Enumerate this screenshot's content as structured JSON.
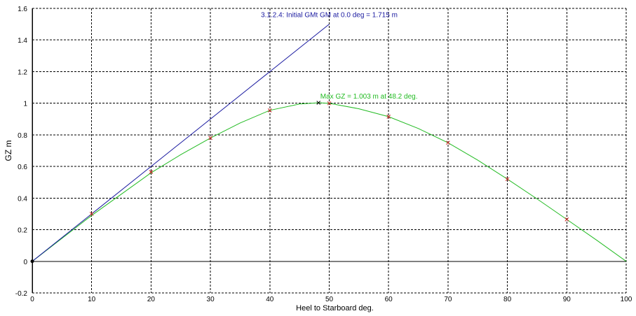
{
  "chart_data": {
    "type": "line",
    "xlabel": "Heel to Starboard  deg.",
    "ylabel": "GZ  m",
    "xlim": [
      0,
      100
    ],
    "ylim": [
      -0.2,
      1.6
    ],
    "xticks": [
      0,
      10,
      20,
      30,
      40,
      50,
      60,
      70,
      80,
      90,
      100
    ],
    "yticks": [
      -0.2,
      0,
      0.2,
      0.4,
      0.6,
      0.8,
      1,
      1.2,
      1.4,
      1.6
    ],
    "grid": true,
    "colors": {
      "gz_curve": "#22bb22",
      "gm_line": "#1a1aa0",
      "markers": "#cc2222",
      "axes": "#000000",
      "grid": "#000000"
    },
    "series": [
      {
        "key": "gz",
        "x": [
          0,
          5,
          10,
          15,
          20,
          25,
          30,
          35,
          40,
          45,
          48.2,
          50,
          55,
          60,
          65,
          70,
          75,
          80,
          85,
          90,
          95,
          100
        ],
        "y": [
          0,
          0.145,
          0.29,
          0.425,
          0.56,
          0.675,
          0.78,
          0.875,
          0.955,
          0.995,
          1.003,
          1.0,
          0.965,
          0.915,
          0.84,
          0.75,
          0.64,
          0.52,
          0.395,
          0.265,
          0.135,
          0.0
        ]
      },
      {
        "key": "gm",
        "x": [
          0,
          50
        ],
        "y": [
          0,
          1.5
        ]
      }
    ],
    "markers": {
      "x": [
        10,
        20,
        30,
        40,
        50,
        60,
        70,
        80,
        90
      ],
      "y": [
        0.3,
        0.565,
        0.78,
        0.955,
        1.0,
        0.915,
        0.75,
        0.52,
        0.265
      ]
    },
    "max_point": {
      "x": 48.2,
      "y": 1.003
    },
    "annotations": [
      {
        "text": "3.1.2.4: Initial GMt GM at 0.0 deg = 1.715 m",
        "x": 38.5,
        "y": 1.545,
        "color": "#1a1aa0"
      },
      {
        "text": "Max GZ = 1.003 m at 48.2 deg.",
        "x": 48.5,
        "y": 1.03,
        "color": "#22bb22"
      }
    ]
  }
}
